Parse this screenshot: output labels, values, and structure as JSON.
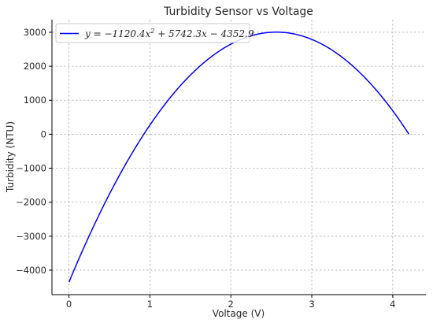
{
  "chart_data": {
    "type": "line",
    "title": "Turbidity Sensor vs Voltage",
    "xlabel": "Voltage (V)",
    "ylabel": "Turbidity (NTU)",
    "xlim": [
      -0.21,
      4.41
    ],
    "ylim": [
      -4720,
      3370
    ],
    "x_ticks": [
      0,
      1,
      2,
      3,
      4
    ],
    "y_ticks": [
      -4000,
      -3000,
      -2000,
      -1000,
      0,
      1000,
      2000,
      3000
    ],
    "y_tick_labels": [
      "−4000",
      "−3000",
      "−2000",
      "−1000",
      "0",
      "1000",
      "2000",
      "3000"
    ],
    "grid": true,
    "legend_position": "top-left",
    "series": [
      {
        "name": "y = −1120.4x² + 5742.3x − 4352.9",
        "color": "#0000ff",
        "equation": {
          "a": -1120.4,
          "b": 5742.3,
          "c": -4352.9
        },
        "x_range": [
          0,
          4.2
        ]
      }
    ]
  }
}
